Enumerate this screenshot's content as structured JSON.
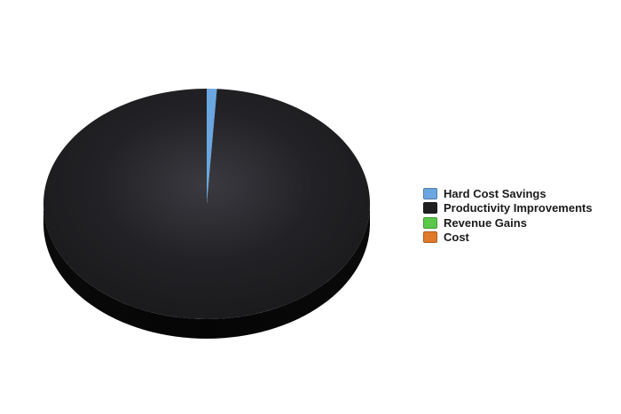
{
  "chart_data": {
    "type": "pie",
    "title": "",
    "legend_position": "right",
    "series": [
      {
        "categories": [
          "Hard Cost Savings",
          "Productivity Improvements",
          "Revenue Gains",
          "Cost"
        ],
        "values": [
          1,
          99,
          0,
          0
        ]
      }
    ],
    "colors": [
      "#6aa6e0",
      "#1f1f22",
      "#5cc84a",
      "#e07a2a"
    ]
  }
}
